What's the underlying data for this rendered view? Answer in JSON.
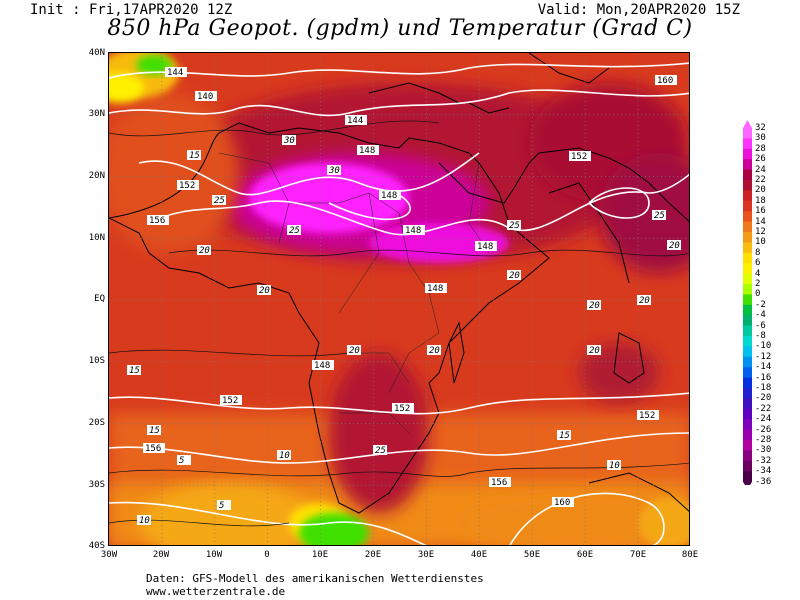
{
  "header": {
    "init": "Init : Fri,17APR2020 12Z",
    "valid": "Valid: Mon,20APR2020 15Z",
    "title": "850 hPa Geopot. (gpdm) und Temperatur (Grad C)"
  },
  "axes": {
    "lat_labels": [
      "40N",
      "30N",
      "20N",
      "10N",
      "EQ",
      "10S",
      "20S",
      "30S",
      "40S"
    ],
    "lon_labels": [
      "30W",
      "20W",
      "10W",
      "0",
      "10E",
      "20E",
      "30E",
      "40E",
      "50E",
      "60E",
      "70E",
      "80E"
    ]
  },
  "legend": {
    "unit": "Grad C",
    "levels": [
      "32",
      "30",
      "28",
      "26",
      "24",
      "22",
      "20",
      "18",
      "16",
      "14",
      "12",
      "10",
      "8",
      "6",
      "4",
      "2",
      "0",
      "-2",
      "-4",
      "-6",
      "-8",
      "-10",
      "-12",
      "-14",
      "-16",
      "-18",
      "-20",
      "-22",
      "-24",
      "-26",
      "-28",
      "-30",
      "-32",
      "-34",
      "-36"
    ],
    "colors": [
      "#ff66ff",
      "#ff33ff",
      "#ee11dd",
      "#cc0099",
      "#aa0044",
      "#aa1133",
      "#cc2222",
      "#dd3322",
      "#e8541c",
      "#ef7a1a",
      "#f59a14",
      "#f8bb10",
      "#ffe000",
      "#fff000",
      "#e0ff00",
      "#a8ff00",
      "#40e000",
      "#00c040",
      "#00b070",
      "#00c8a0",
      "#00d8d0",
      "#00c0f0",
      "#0090f0",
      "#0060f0",
      "#0030e0",
      "#2020d0",
      "#4010c0",
      "#6000c0",
      "#8000c0",
      "#9a00b0",
      "#b000a0",
      "#8a0080",
      "#6a0060",
      "#4a0048"
    ]
  },
  "contour_labels": {
    "geopotential": [
      "144",
      "140",
      "148",
      "152",
      "156",
      "160",
      "148",
      "152",
      "144",
      "148",
      "148",
      "148",
      "148",
      "152",
      "152",
      "152",
      "156",
      "156",
      "160"
    ],
    "temperature": [
      "25",
      "20",
      "15",
      "10",
      "5",
      "30",
      "20",
      "25",
      "15",
      "10",
      "20",
      "20",
      "25",
      "30",
      "20",
      "20",
      "25",
      "20",
      "15",
      "10",
      "5",
      "20",
      "25",
      "20",
      "15"
    ]
  },
  "source": {
    "line1": "Daten: GFS-Modell des amerikanischen Wetterdienstes",
    "line2": "www.wetterzentrale.de"
  }
}
